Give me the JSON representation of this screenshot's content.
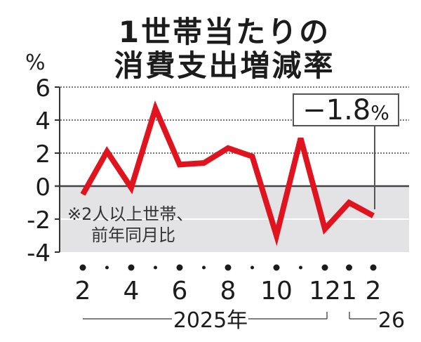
{
  "title": {
    "line1": "1世帯当たりの",
    "line2": "消費支出増減率"
  },
  "unit_label": "%",
  "note": {
    "line1": "※2人以上世帯、",
    "line2": "前年同月比"
  },
  "callout": {
    "value": "−1.8",
    "unit": "%"
  },
  "colors": {
    "line": "#e0141e",
    "negative_area": "#e3e3e5",
    "grid": "#777777",
    "axis": "#333333"
  },
  "chart_data": {
    "type": "line",
    "title": "1世帯当たりの消費支出増減率",
    "ylabel": "%",
    "xlabel": "",
    "ylim": [
      -4,
      6
    ],
    "yticks": [
      6,
      4,
      2,
      0,
      -2,
      -4
    ],
    "x": [
      "2025-02",
      "2025-03",
      "2025-04",
      "2025-05",
      "2025-06",
      "2025-07",
      "2025-08",
      "2025-09",
      "2025-10",
      "2025-11",
      "2025-12",
      "2026-01",
      "2026-02"
    ],
    "x_tick_labels": [
      "2",
      "",
      "4",
      "",
      "6",
      "",
      "8",
      "",
      "10",
      "",
      "12",
      "1",
      "2"
    ],
    "year_labels": [
      {
        "label": "2025年",
        "span": "2025-02..2025-12"
      },
      {
        "label": "26",
        "span": "2026-01..2026-02"
      }
    ],
    "series": [
      {
        "name": "消費支出増減率(前年同月比)",
        "values": [
          -0.5,
          2.1,
          -0.1,
          4.7,
          1.3,
          1.4,
          2.3,
          1.8,
          -3.0,
          2.9,
          -2.6,
          -1.0,
          -1.8
        ]
      }
    ],
    "annotations": [
      {
        "text": "−1.8%",
        "target": "2026-02"
      },
      {
        "text": "※2人以上世帯、前年同月比"
      }
    ],
    "grid": "dotted horizontal at 2, 4, 6",
    "legend": "none"
  }
}
